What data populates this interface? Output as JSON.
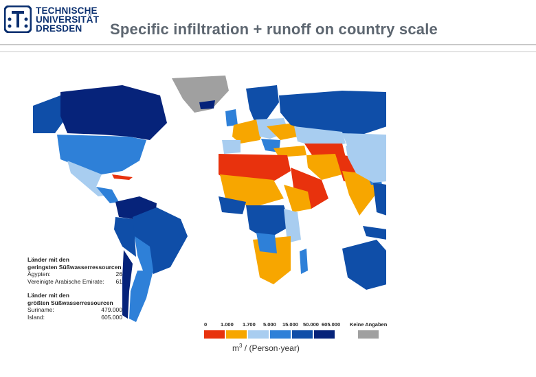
{
  "header": {
    "logo_lines": [
      "TECHNISCHE",
      "UNIVERSITÄT",
      "DRESDEN"
    ],
    "title": "Specific infiltration + runoff on country scale"
  },
  "facts": {
    "lowest_heading": [
      "Länder mit den",
      "geringsten Süßwasserressourcen"
    ],
    "lowest": [
      {
        "country": "Ägypten:",
        "value": "26"
      },
      {
        "country": "Vereinigte Arabische Emirate:",
        "value": "61"
      }
    ],
    "highest_heading": [
      "Länder mit den",
      "größten Süßwasserressourcen"
    ],
    "highest": [
      {
        "country": "Suriname:",
        "value": "479.000"
      },
      {
        "country": "Island:",
        "value": "605.000"
      }
    ]
  },
  "legend": {
    "labels": [
      "0",
      "1.000",
      "1.700",
      "5.000",
      "15.000",
      "50.000",
      "605.000"
    ],
    "no_data_label": "Keine Angaben",
    "colors": [
      "#e8320d",
      "#f7a600",
      "#a8cdf0",
      "#2e80d8",
      "#0f4ea8",
      "#06237a"
    ],
    "no_data_color": "#a0a0a0"
  },
  "unit": {
    "base": "m",
    "exp": "3",
    "rest": " / (Person·year)"
  }
}
